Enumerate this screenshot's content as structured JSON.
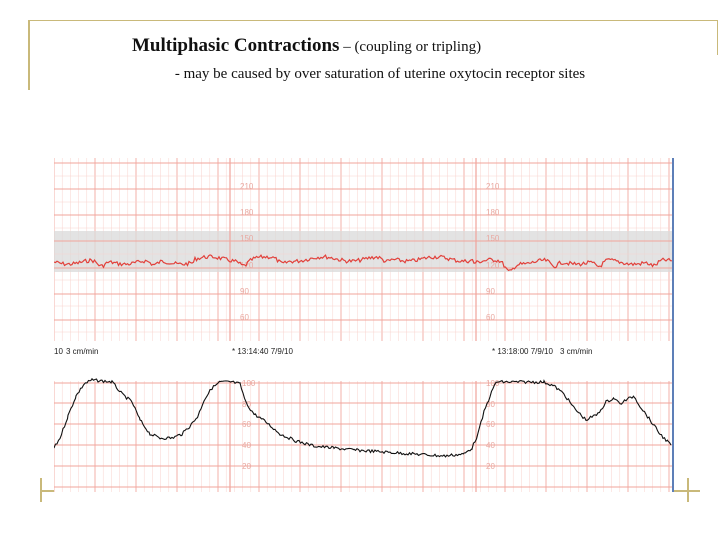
{
  "slide": {
    "title_strong": "Multiphasic Contractions",
    "title_rest": " – (coupling or tripling)",
    "subtitle": "- may be caused by over saturation of uterine oxytocin receptor sites"
  },
  "strip": {
    "fhr_scale": [
      "210",
      "180",
      "150",
      "120",
      "90",
      "60"
    ],
    "toco_scale": [
      "100",
      "80",
      "60",
      "40",
      "20"
    ],
    "speed_label": "3 cm/min",
    "speed_prefix": "10",
    "timestamp_1": "* 13:14:40 7/9/10",
    "timestamp_2": "* 13:18:00 7/9/10",
    "timestamp_2_speed": "3 cm/min",
    "colors": {
      "fhr_trace": "#e2403a",
      "toco_trace": "#111111",
      "grid_major": "#f1a49b",
      "grid_minor": "#f8d3ce",
      "normal_band": "#d9d9d9"
    }
  }
}
